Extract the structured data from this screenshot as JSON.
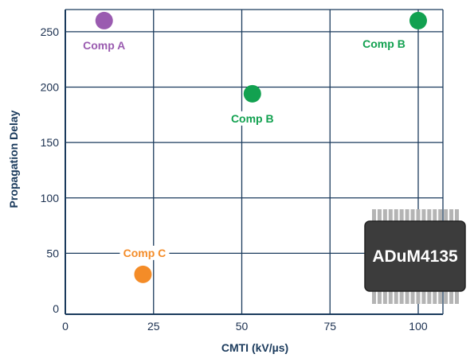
{
  "chart_data": {
    "type": "scatter",
    "xlabel": "CMTI (kV/µs)",
    "ylabel": "Propagation Delay",
    "xlim": [
      0,
      107
    ],
    "ylim": [
      -5,
      270
    ],
    "x_ticks": [
      0,
      25,
      50,
      75,
      100
    ],
    "y_ticks": [
      0,
      50,
      100,
      150,
      200,
      250
    ],
    "grid": true,
    "points": [
      {
        "label": "Comp A",
        "x": 11,
        "y": 260,
        "color": "#9a5bb0",
        "label_pos": "below"
      },
      {
        "label": "Comp B",
        "x": 53,
        "y": 194,
        "color": "#12a150",
        "label_pos": "below"
      },
      {
        "label": "Comp B",
        "x": 100,
        "y": 260,
        "color": "#12a150",
        "label_pos": "below-left"
      },
      {
        "label": "Comp C",
        "x": 22,
        "y": 31,
        "color": "#f48c28",
        "label_pos": "above-left"
      }
    ]
  },
  "chip": {
    "label": "ADuM4135",
    "body_color": "#3c3c3c",
    "pin_color": "#b4b4b4"
  },
  "colors": {
    "axis": "#1a3a5c",
    "grid": "#1a3a5c"
  }
}
